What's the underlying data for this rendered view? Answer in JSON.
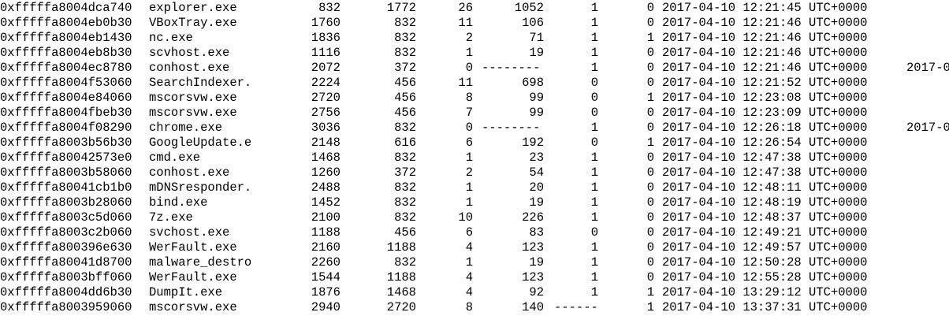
{
  "processes": [
    {
      "offset": "0xfffffa8004dca740",
      "name": "explorer.exe",
      "pid": "832",
      "ppid": "1772",
      "thds": "26",
      "hnds": "1052",
      "sess": "1",
      "wow64": "0",
      "start": "2017-04-10 12:21:45 UTC+0000",
      "exit": ""
    },
    {
      "offset": "0xfffffa8004eb0b30",
      "name": "VBoxTray.exe",
      "pid": "1760",
      "ppid": "832",
      "thds": "11",
      "hnds": "106",
      "sess": "1",
      "wow64": "0",
      "start": "2017-04-10 12:21:46 UTC+0000",
      "exit": ""
    },
    {
      "offset": "0xfffffa8004eb1430",
      "name": "nc.exe",
      "pid": "1836",
      "ppid": "832",
      "thds": "2",
      "hnds": "71",
      "sess": "1",
      "wow64": "1",
      "start": "2017-04-10 12:21:46 UTC+0000",
      "exit": ""
    },
    {
      "offset": "0xfffffa8004eb8b30",
      "name": "scvhost.exe",
      "pid": "1116",
      "ppid": "832",
      "thds": "1",
      "hnds": "19",
      "sess": "1",
      "wow64": "0",
      "start": "2017-04-10 12:21:46 UTC+0000",
      "exit": ""
    },
    {
      "offset": "0xfffffa8004ec8780",
      "name": "conhost.exe",
      "pid": "2072",
      "ppid": "372",
      "thds": "0",
      "hnds": "--------",
      "sess": "1",
      "wow64": "0",
      "start": "2017-04-10 12:21:46 UTC+0000",
      "exit": "2017-0"
    },
    {
      "offset": "0xfffffa8004f53060",
      "name": "SearchIndexer.",
      "pid": "2224",
      "ppid": "456",
      "thds": "11",
      "hnds": "698",
      "sess": "0",
      "wow64": "0",
      "start": "2017-04-10 12:21:52 UTC+0000",
      "exit": ""
    },
    {
      "offset": "0xfffffa8004e84060",
      "name": "mscorsvw.exe",
      "pid": "2720",
      "ppid": "456",
      "thds": "8",
      "hnds": "99",
      "sess": "0",
      "wow64": "1",
      "start": "2017-04-10 12:23:08 UTC+0000",
      "exit": ""
    },
    {
      "offset": "0xfffffa8004fbeb30",
      "name": "mscorsvw.exe",
      "pid": "2756",
      "ppid": "456",
      "thds": "7",
      "hnds": "99",
      "sess": "0",
      "wow64": "0",
      "start": "2017-04-10 12:23:09 UTC+0000",
      "exit": ""
    },
    {
      "offset": "0xfffffa8004f08290",
      "name": "chrome.exe",
      "pid": "3036",
      "ppid": "832",
      "thds": "0",
      "hnds": "--------",
      "sess": "1",
      "wow64": "0",
      "start": "2017-04-10 12:26:18 UTC+0000",
      "exit": "2017-0"
    },
    {
      "offset": "0xfffffa8003b56b30",
      "name": "GoogleUpdate.e",
      "pid": "2148",
      "ppid": "616",
      "thds": "6",
      "hnds": "192",
      "sess": "0",
      "wow64": "1",
      "start": "2017-04-10 12:26:54 UTC+0000",
      "exit": ""
    },
    {
      "offset": "0xfffffa80042573e0",
      "name": "cmd.exe",
      "pid": "1468",
      "ppid": "832",
      "thds": "1",
      "hnds": "23",
      "sess": "1",
      "wow64": "0",
      "start": "2017-04-10 12:47:38 UTC+0000",
      "exit": ""
    },
    {
      "offset": "0xfffffa8003b58060",
      "name": "conhost.exe",
      "pid": "1260",
      "ppid": "372",
      "thds": "2",
      "hnds": "54",
      "sess": "1",
      "wow64": "0",
      "start": "2017-04-10 12:47:38 UTC+0000",
      "exit": ""
    },
    {
      "offset": "0xfffffa80041cb1b0",
      "name": "mDNSresponder.",
      "pid": "2488",
      "ppid": "832",
      "thds": "1",
      "hnds": "20",
      "sess": "1",
      "wow64": "0",
      "start": "2017-04-10 12:48:11 UTC+0000",
      "exit": ""
    },
    {
      "offset": "0xfffffa8003b28060",
      "name": "bind.exe",
      "pid": "1452",
      "ppid": "832",
      "thds": "1",
      "hnds": "19",
      "sess": "1",
      "wow64": "0",
      "start": "2017-04-10 12:48:19 UTC+0000",
      "exit": ""
    },
    {
      "offset": "0xfffffa8003c5d060",
      "name": "7z.exe",
      "pid": "2100",
      "ppid": "832",
      "thds": "10",
      "hnds": "226",
      "sess": "1",
      "wow64": "0",
      "start": "2017-04-10 12:48:37 UTC+0000",
      "exit": ""
    },
    {
      "offset": "0xfffffa8003c2b060",
      "name": "svchost.exe",
      "pid": "1188",
      "ppid": "456",
      "thds": "6",
      "hnds": "83",
      "sess": "0",
      "wow64": "0",
      "start": "2017-04-10 12:49:21 UTC+0000",
      "exit": ""
    },
    {
      "offset": "0xfffffa800396e630",
      "name": "WerFault.exe",
      "pid": "2160",
      "ppid": "1188",
      "thds": "4",
      "hnds": "123",
      "sess": "1",
      "wow64": "0",
      "start": "2017-04-10 12:49:57 UTC+0000",
      "exit": ""
    },
    {
      "offset": "0xfffffa80041d8700",
      "name": "malware_destro",
      "pid": "2260",
      "ppid": "832",
      "thds": "1",
      "hnds": "19",
      "sess": "1",
      "wow64": "0",
      "start": "2017-04-10 12:50:28 UTC+0000",
      "exit": ""
    },
    {
      "offset": "0xfffffa8003bff060",
      "name": "WerFault.exe",
      "pid": "1544",
      "ppid": "1188",
      "thds": "4",
      "hnds": "123",
      "sess": "1",
      "wow64": "0",
      "start": "2017-04-10 12:55:28 UTC+0000",
      "exit": ""
    },
    {
      "offset": "0xfffffa8004dd6b30",
      "name": "DumpIt.exe",
      "pid": "1876",
      "ppid": "1468",
      "thds": "4",
      "hnds": "92",
      "sess": "1",
      "wow64": "1",
      "start": "2017-04-10 13:29:12 UTC+0000",
      "exit": ""
    },
    {
      "offset": "0xfffffa8003959060",
      "name": "mscorsvw.exe",
      "pid": "2940",
      "ppid": "2720",
      "thds": "8",
      "hnds": "140",
      "sess": "------",
      "wow64": "1",
      "start": "2017-04-10 13:37:31 UTC+0000",
      "exit": ""
    }
  ],
  "colors": {
    "background": "#ffffff",
    "text": "#000000"
  }
}
